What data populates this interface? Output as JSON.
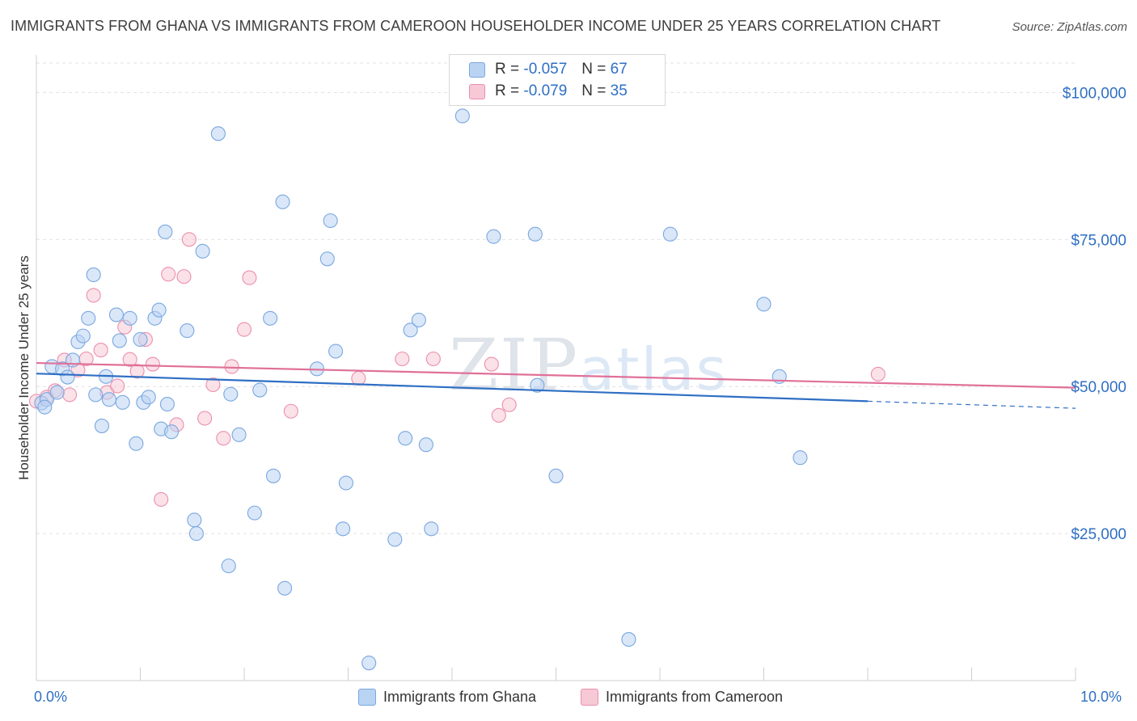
{
  "title": "IMMIGRANTS FROM GHANA VS IMMIGRANTS FROM CAMEROON HOUSEHOLDER INCOME UNDER 25 YEARS CORRELATION CHART",
  "source": "Source: ZipAtlas.com",
  "watermark": {
    "zip": "ZIP",
    "atlas": "atlas"
  },
  "legend_top": [
    {
      "r_label": "R = ",
      "r_value": "-0.057",
      "n_label": "N = ",
      "n_value": "67"
    },
    {
      "r_label": "R = ",
      "r_value": "-0.079",
      "n_label": "N = ",
      "n_value": "35"
    }
  ],
  "colors": {
    "ghana_fill": "#b9d3f3",
    "ghana_stroke": "#7aa7e0",
    "ghana_line": "#2f6fc4",
    "cameroon_fill": "#f7c8d6",
    "cameroon_stroke": "#ea90ad",
    "cameroon_line": "#e07098",
    "tick_text": "#2f6fc4",
    "grid": "#e1e1e1"
  },
  "chart_data": {
    "type": "scatter",
    "ylabel": "Householder Income Under 25 years",
    "xlim": [
      0,
      10
    ],
    "ylim": [
      0,
      105000
    ],
    "x_tick_labels": [
      "0.0%",
      "10.0%"
    ],
    "y_ticks": [
      {
        "value": 25000,
        "label": "$25,000"
      },
      {
        "value": 50000,
        "label": "$50,000"
      },
      {
        "value": 75000,
        "label": "$75,000"
      },
      {
        "value": 100000,
        "label": "$100,000"
      }
    ],
    "grid": true,
    "legend": "bottom",
    "series": [
      {
        "name": "Immigrants from Ghana",
        "color": "blue",
        "trend": {
          "x0": 0,
          "y0": 52200,
          "x1": 8,
          "y1": 47500,
          "dashed_to": 10,
          "y_end": 46300
        },
        "points": [
          [
            0.05,
            47200
          ],
          [
            0.1,
            47800
          ],
          [
            0.15,
            53400
          ],
          [
            0.2,
            49000
          ],
          [
            0.25,
            53000
          ],
          [
            0.3,
            51600
          ],
          [
            0.35,
            54500
          ],
          [
            0.4,
            57600
          ],
          [
            0.45,
            58600
          ],
          [
            0.5,
            61600
          ],
          [
            0.55,
            69000
          ],
          [
            0.57,
            48600
          ],
          [
            0.63,
            43300
          ],
          [
            0.67,
            51700
          ],
          [
            0.7,
            47800
          ],
          [
            0.77,
            62200
          ],
          [
            0.8,
            57800
          ],
          [
            0.83,
            47300
          ],
          [
            0.9,
            61600
          ],
          [
            0.96,
            40300
          ],
          [
            1.0,
            58000
          ],
          [
            1.03,
            47300
          ],
          [
            1.08,
            48200
          ],
          [
            1.14,
            61600
          ],
          [
            1.18,
            63000
          ],
          [
            1.2,
            42800
          ],
          [
            1.26,
            47000
          ],
          [
            1.3,
            42300
          ],
          [
            1.24,
            76300
          ],
          [
            1.45,
            59500
          ],
          [
            1.52,
            27300
          ],
          [
            1.54,
            25000
          ],
          [
            1.6,
            73000
          ],
          [
            1.75,
            93000
          ],
          [
            1.85,
            19500
          ],
          [
            1.87,
            48700
          ],
          [
            1.95,
            41800
          ],
          [
            2.1,
            28500
          ],
          [
            2.15,
            49400
          ],
          [
            2.25,
            61600
          ],
          [
            2.28,
            34800
          ],
          [
            2.37,
            81400
          ],
          [
            2.39,
            15700
          ],
          [
            2.7,
            53000
          ],
          [
            2.8,
            71700
          ],
          [
            2.83,
            78200
          ],
          [
            2.88,
            56000
          ],
          [
            2.95,
            25800
          ],
          [
            2.98,
            33600
          ],
          [
            3.2,
            3000
          ],
          [
            3.45,
            24000
          ],
          [
            3.55,
            41200
          ],
          [
            3.6,
            59600
          ],
          [
            3.68,
            61300
          ],
          [
            3.75,
            40100
          ],
          [
            3.8,
            25800
          ],
          [
            4.1,
            96000
          ],
          [
            4.4,
            75500
          ],
          [
            4.8,
            75900
          ],
          [
            4.82,
            50200
          ],
          [
            5.0,
            34800
          ],
          [
            5.7,
            7000
          ],
          [
            6.1,
            75900
          ],
          [
            7.0,
            64000
          ],
          [
            7.15,
            51700
          ],
          [
            7.35,
            37900
          ],
          [
            0.08,
            46500
          ]
        ]
      },
      {
        "name": "Immigrants from Cameroon",
        "color": "pink",
        "trend": {
          "x0": 0,
          "y0": 54000,
          "x1": 10,
          "y1": 49800
        },
        "points": [
          [
            0.0,
            47500
          ],
          [
            0.1,
            48200
          ],
          [
            0.18,
            49300
          ],
          [
            0.27,
            54500
          ],
          [
            0.32,
            48600
          ],
          [
            0.4,
            52800
          ],
          [
            0.48,
            54700
          ],
          [
            0.55,
            65500
          ],
          [
            0.62,
            56200
          ],
          [
            0.68,
            49000
          ],
          [
            0.78,
            50100
          ],
          [
            0.85,
            60100
          ],
          [
            0.9,
            54600
          ],
          [
            0.97,
            52600
          ],
          [
            1.05,
            58000
          ],
          [
            1.12,
            53800
          ],
          [
            1.2,
            30800
          ],
          [
            1.27,
            69100
          ],
          [
            1.35,
            43500
          ],
          [
            1.42,
            68700
          ],
          [
            1.47,
            75000
          ],
          [
            1.62,
            44600
          ],
          [
            1.7,
            50300
          ],
          [
            1.8,
            41200
          ],
          [
            1.88,
            53400
          ],
          [
            2.0,
            59700
          ],
          [
            2.05,
            68500
          ],
          [
            2.45,
            45800
          ],
          [
            3.1,
            51400
          ],
          [
            3.52,
            54700
          ],
          [
            3.82,
            54700
          ],
          [
            4.38,
            53800
          ],
          [
            4.45,
            45100
          ],
          [
            4.55,
            46900
          ],
          [
            8.1,
            52100
          ]
        ]
      }
    ]
  }
}
